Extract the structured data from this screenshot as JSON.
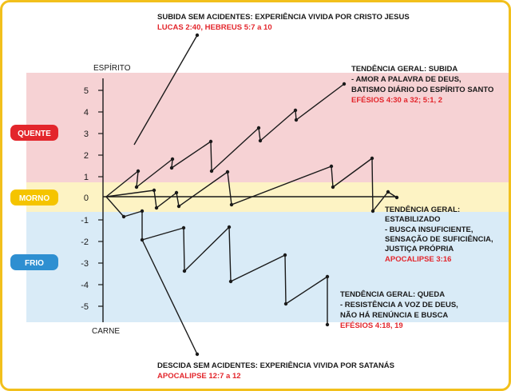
{
  "axis": {
    "top_label": "ESPÍRITO",
    "bottom_label": "CARNE",
    "ticks": [
      "5",
      "4",
      "3",
      "2",
      "1",
      "0",
      "-1",
      "-2",
      "-3",
      "-4",
      "-5"
    ]
  },
  "zones": {
    "hot": {
      "label": "QUENTE",
      "color": "#e3262c",
      "band_color": "#f6d2d4"
    },
    "warm": {
      "label": "MORNO",
      "color": "#f5c400",
      "band_color": "#fdf3c4"
    },
    "cold": {
      "label": "FRIO",
      "color": "#2e8fd1",
      "band_color": "#d9ebf7"
    }
  },
  "annotations": {
    "top": {
      "title": "SUBIDA SEM ACIDENTES: EXPERIÊNCIA VIVIDA POR CRISTO JESUS",
      "ref": "LUCAS 2:40, HEBREUS 5:7 a 10"
    },
    "rise": {
      "title": "TENDÊNCIA GERAL: SUBIDA",
      "line1": "- AMOR A PALAVRA DE DEUS,",
      "line2": "BATISMO DIÁRIO DO ESPÍRITO SANTO",
      "ref": "EFÉSIOS 4:30 a 32; 5:1, 2"
    },
    "stable": {
      "title": "TENDÊNCIA GERAL:",
      "line1": "ESTABILIZADO",
      "line2": "- BUSCA INSUFICIENTE,",
      "line3": "SENSAÇÃO DE SUFICIÊNCIA,",
      "line4": "JUSTIÇA PRÓPRIA",
      "ref": "APOCALIPSE 3:16"
    },
    "fall": {
      "title": "TENDÊNCIA GERAL: QUEDA",
      "line1": "- RESISTÊNCIA A VOZ DE DEUS,",
      "line2": "NÃO HÁ RENÚNCIA E BUSCA",
      "ref": "EFÉSIOS 4:18, 19"
    },
    "bottom": {
      "title": "DESCIDA SEM ACIDENTES: EXPERIÊNCIA VIVIDA POR SATANÁS",
      "ref": "APOCALIPSE 12:7 a 12"
    }
  },
  "colors": {
    "frame": "#f2c01c",
    "line": "#1a1a1a",
    "reference_text": "#e3262c"
  }
}
